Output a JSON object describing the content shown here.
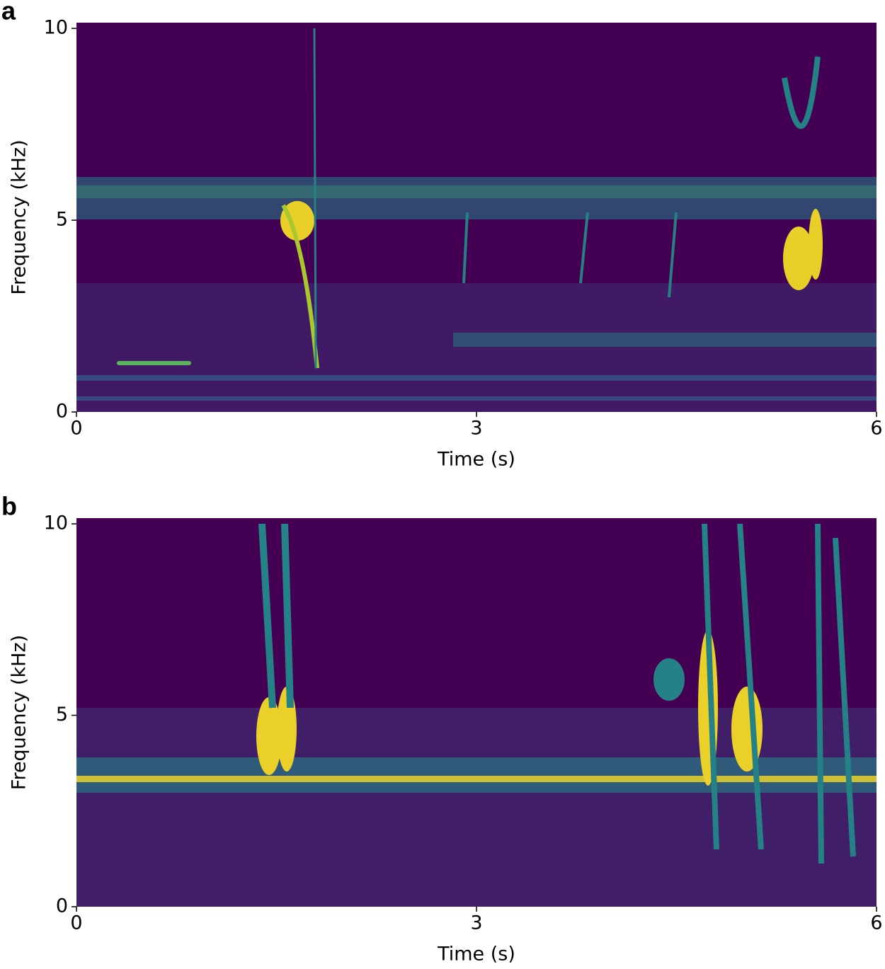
{
  "chart_data": [
    {
      "type": "spectrogram",
      "panel_label": "a",
      "xlabel": "Time (s)",
      "ylabel": "Frequency (kHz)",
      "xlim": [
        0,
        6
      ],
      "ylim": [
        0,
        10.15
      ],
      "xticks": [
        0,
        3,
        6
      ],
      "yticks": [
        0,
        5,
        10
      ],
      "background_color": "#440154"
    },
    {
      "type": "spectrogram",
      "panel_label": "b",
      "xlabel": "Time (s)",
      "ylabel": "Frequency (kHz)",
      "xlim": [
        0,
        6
      ],
      "ylim": [
        0,
        10.15
      ],
      "xticks": [
        0,
        3,
        6
      ],
      "yticks": [
        0,
        5,
        10
      ],
      "background_color": "#440154"
    }
  ]
}
